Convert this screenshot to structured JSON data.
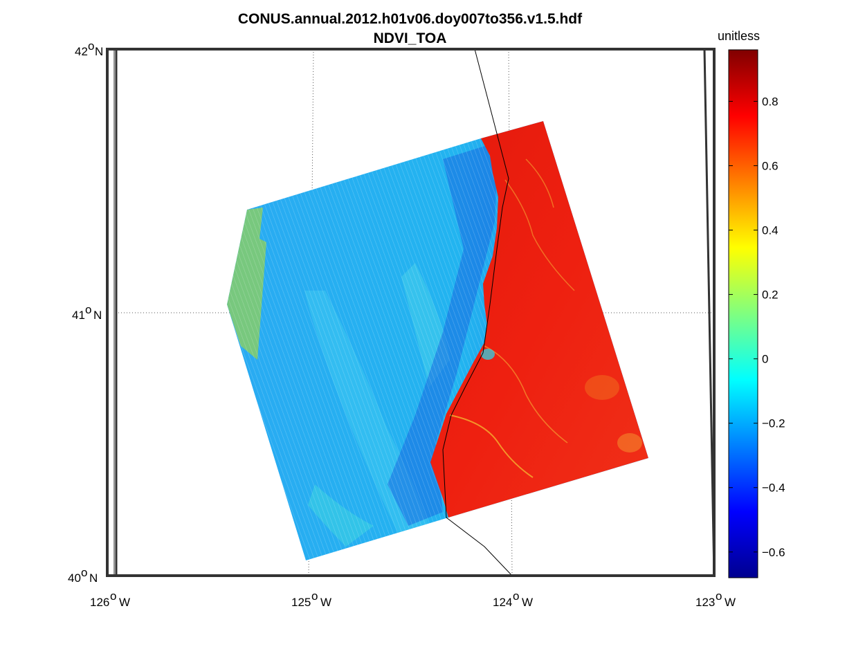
{
  "title": "CONUS.annual.2012.h01v06.doy007to356.v1.5.hdf",
  "subtitle": "NDVI_TOA",
  "map": {
    "lat_labels": [
      {
        "text": "42",
        "suffix": "N"
      },
      {
        "text": "41",
        "suffix": "N"
      },
      {
        "text": "40",
        "suffix": "N"
      }
    ],
    "lon_labels": [
      {
        "text": "126",
        "suffix": "W"
      },
      {
        "text": "125",
        "suffix": "W"
      },
      {
        "text": "124",
        "suffix": "W"
      },
      {
        "text": "123",
        "suffix": "W"
      }
    ],
    "gridlines": "dotted",
    "coastline_color": "#000000"
  },
  "colorbar": {
    "unit_label": "unitless",
    "colormap": "jet",
    "range": [
      -0.68,
      0.96
    ],
    "ticks": [
      "0.8",
      "0.6",
      "0.4",
      "0.2",
      "0",
      "−0.2",
      "−0.4",
      "−0.6"
    ],
    "tick_values": [
      0.8,
      0.6,
      0.4,
      0.2,
      0,
      -0.2,
      -0.4,
      -0.6
    ]
  },
  "data_swath": {
    "ocean_value_approx": -0.2,
    "land_value_approx": 0.85,
    "edge_strip_value_approx": 0.15,
    "ocean_color": "#1aa6ee",
    "land_color": "#ee1a0e"
  }
}
